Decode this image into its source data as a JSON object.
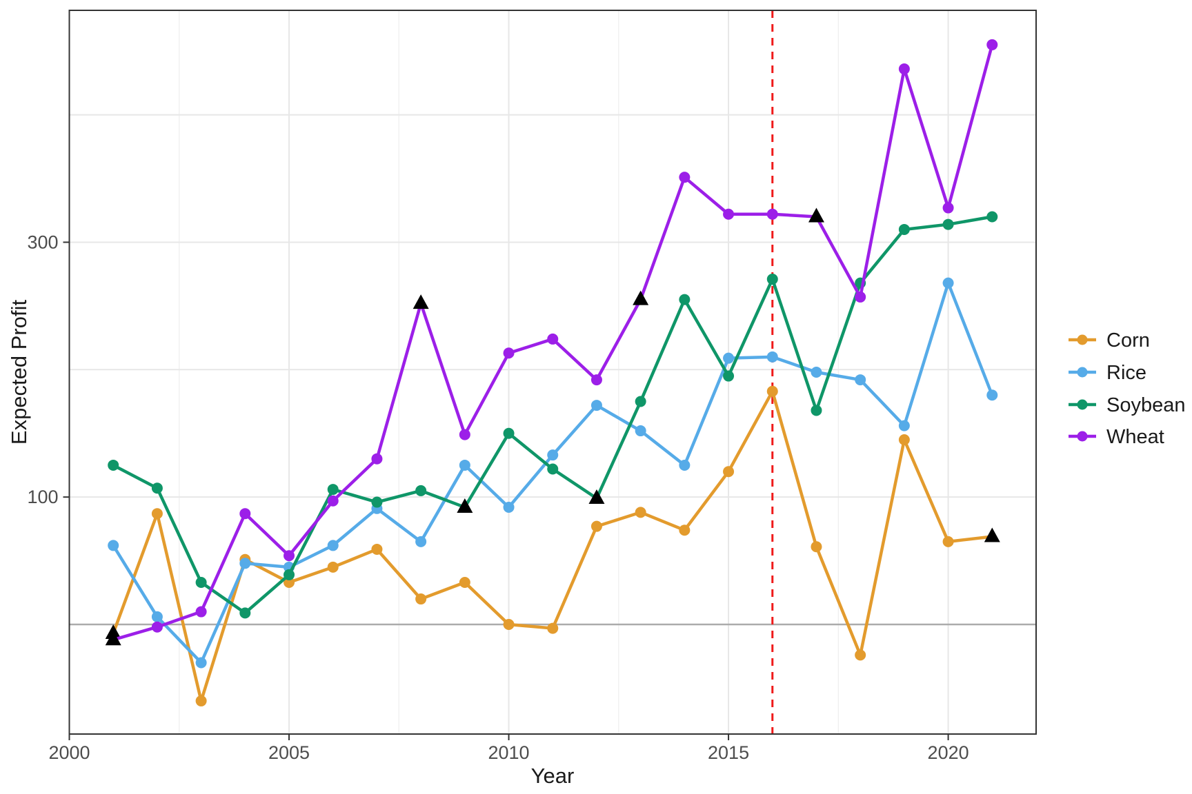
{
  "figure": {
    "x_axis_title": "Year",
    "y_axis_title": "Expected Profit"
  },
  "legend": {
    "entries": [
      {
        "label": "Corn",
        "color": "#E39B2D"
      },
      {
        "label": "Rice",
        "color": "#56ABE8"
      },
      {
        "label": "Soybean",
        "color": "#0F9668"
      },
      {
        "label": "Wheat",
        "color": "#9C1FE8"
      }
    ]
  },
  "chart_data": {
    "type": "line",
    "title": "",
    "xlabel": "Year",
    "ylabel": "Expected Profit",
    "x": [
      2001,
      2002,
      2003,
      2004,
      2005,
      2006,
      2007,
      2008,
      2009,
      2010,
      2011,
      2012,
      2013,
      2014,
      2015,
      2016,
      2017,
      2018,
      2019,
      2020,
      2021
    ],
    "series": [
      {
        "name": "Corn",
        "color": "#E39B2D",
        "values": [
          -7,
          87,
          -60,
          51,
          33,
          45,
          59,
          20,
          33,
          0,
          -3,
          77,
          88,
          74,
          120,
          183,
          61,
          -24,
          145,
          65,
          69
        ],
        "triangle_marker_years": [
          2001,
          2021
        ]
      },
      {
        "name": "Rice",
        "color": "#56ABE8",
        "values": [
          62,
          6,
          -30,
          48,
          45,
          62,
          91,
          65,
          125,
          92,
          133,
          172,
          152,
          125,
          209,
          210,
          198,
          192,
          156,
          268,
          180
        ],
        "triangle_marker_years": []
      },
      {
        "name": "Soybean",
        "color": "#0F9668",
        "values": [
          125,
          107,
          33,
          9,
          39,
          106,
          96,
          105,
          92,
          150,
          122,
          99,
          175,
          255,
          195,
          271,
          168,
          268,
          310,
          314,
          320
        ],
        "triangle_marker_years": [
          2009,
          2012
        ]
      },
      {
        "name": "Wheat",
        "color": "#9C1FE8",
        "values": [
          -12,
          -2,
          10,
          87,
          54,
          97,
          130,
          252,
          149,
          213,
          224,
          192,
          255,
          351,
          322,
          322,
          320,
          257,
          436,
          327,
          455
        ],
        "triangle_marker_years": [
          2001,
          2008,
          2013,
          2017
        ]
      }
    ],
    "x_ticks": [
      2000,
      2005,
      2010,
      2015,
      2020
    ],
    "y_ticks": [
      100,
      300
    ],
    "x_minor_ticks": [
      2002.5,
      2007.5,
      2012.5,
      2017.5
    ],
    "y_minor_gridlines": [
      200,
      400
    ],
    "xlim": [
      2000,
      2022
    ],
    "ylim": [
      -86,
      482
    ],
    "grid": true,
    "legend_position": "right",
    "reference_lines": {
      "vline": {
        "x": 2016,
        "style": "dashed",
        "color": "#EF1A1A"
      },
      "hline": {
        "y": 0,
        "style": "solid",
        "color": "#ABABAB"
      }
    }
  },
  "style_colors": {
    "panel_border": "#333333",
    "grid_major": "#E7E7E7",
    "grid_minor": "#EFEFEF",
    "tick": "#333333",
    "tick_text": "#4d4d4d",
    "background": "#ffffff"
  }
}
